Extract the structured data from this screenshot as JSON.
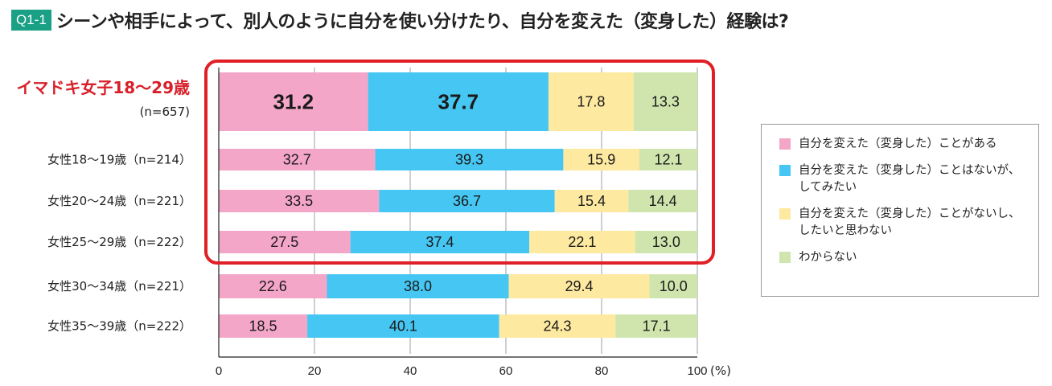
{
  "header": {
    "badge": "Q1-1",
    "title": "シーンや相手によって、別人のように自分を使い分けたり、自分を変えた（変身した）経験は?"
  },
  "colors": {
    "series": [
      "#f4a6c8",
      "#46c6f2",
      "#fde9a0",
      "#cfe5ad"
    ],
    "highlight_label": "#d8202a",
    "highlight_box": "#e02026",
    "grid": "#9aa0a6"
  },
  "chart_data": {
    "type": "bar",
    "orientation": "horizontal",
    "stacked": true,
    "categories": [
      {
        "label": "イマドキ女子18〜29歳",
        "sublabel": "(n=657)",
        "highlight": true
      },
      {
        "label": "女性18〜19歳（n=214）"
      },
      {
        "label": "女性20〜24歳（n=221）"
      },
      {
        "label": "女性25〜29歳（n=222）"
      },
      {
        "label": "女性30〜34歳（n=221）"
      },
      {
        "label": "女性35〜39歳（n=222）"
      }
    ],
    "series": [
      {
        "name": "自分を変えた（変身した）ことがある",
        "values": [
          31.2,
          32.7,
          33.5,
          27.5,
          22.6,
          18.5
        ]
      },
      {
        "name": "自分を変えた（変身した）ことはないが、\nしてみたい",
        "values": [
          37.7,
          39.3,
          36.7,
          37.4,
          38.0,
          40.1
        ]
      },
      {
        "name": "自分を変えた（変身した）ことがないし、\nしたいと思わない",
        "values": [
          17.8,
          15.9,
          15.4,
          22.1,
          29.4,
          24.3
        ]
      },
      {
        "name": "わからない",
        "values": [
          13.3,
          12.1,
          14.4,
          13.0,
          10.0,
          17.1
        ]
      }
    ],
    "value_labels": [
      [
        "31.2",
        "37.7",
        "17.8",
        "13.3"
      ],
      [
        "32.7",
        "39.3",
        "15.9",
        "12.1"
      ],
      [
        "33.5",
        "36.7",
        "15.4",
        "14.4"
      ],
      [
        "27.5",
        "37.4",
        "22.1",
        "13.0"
      ],
      [
        "22.6",
        "38.0",
        "29.4",
        "10.0"
      ],
      [
        "18.5",
        "40.1",
        "24.3",
        "17.1"
      ]
    ],
    "xlim": [
      0,
      100
    ],
    "xticks": [
      "0",
      "20",
      "40",
      "60",
      "80",
      "100"
    ],
    "x_unit": "(%)",
    "grid": true,
    "legend_position": "right"
  }
}
